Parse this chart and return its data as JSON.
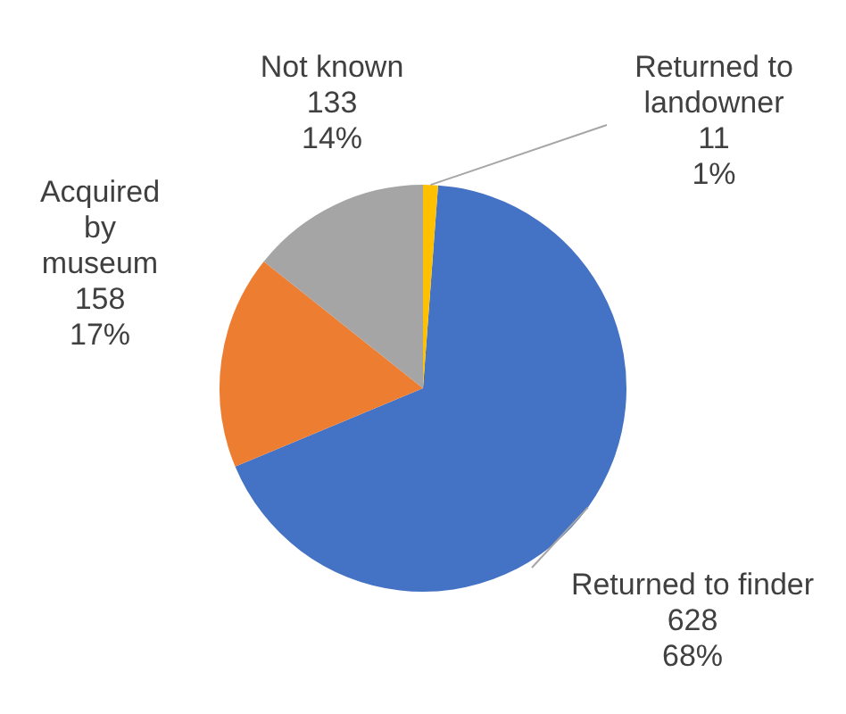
{
  "chart_data": {
    "type": "pie",
    "categories": [
      "Returned to finder",
      "Acquired by museum",
      "Not known",
      "Returned to landowner"
    ],
    "values": [
      628,
      158,
      133,
      11
    ],
    "colors": [
      "#4472c4",
      "#ed7d31",
      "#a5a5a5",
      "#ffc000"
    ],
    "value_labels": [
      "628\n68%",
      "158\n17%",
      "133\n14%",
      "11\n1%"
    ],
    "legend": false
  }
}
